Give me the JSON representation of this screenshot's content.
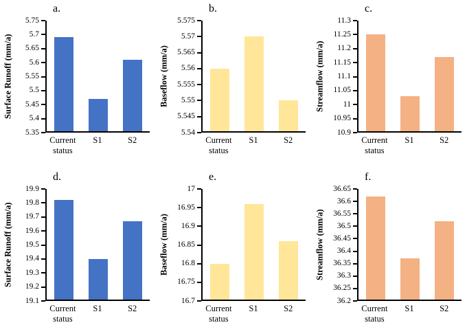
{
  "figure": {
    "background": "#ffffff",
    "axis_color": "#000000",
    "scenario_labels": [
      "Current status",
      "S1",
      "S2"
    ]
  },
  "chart_data": [
    {
      "type": "bar",
      "panel_label": "a.",
      "ylabel": "Surface Runoff (mm/a)",
      "xlabel": "",
      "categories": [
        "Current status",
        "S1",
        "S2"
      ],
      "values": [
        5.69,
        5.47,
        5.61
      ],
      "ylim": [
        5.35,
        5.75
      ],
      "ytick_step": 0.05,
      "bar_color": "#4472C4",
      "grid": false,
      "legend": "none"
    },
    {
      "type": "bar",
      "panel_label": "b.",
      "ylabel": "Baseflow (mm/a)",
      "xlabel": "",
      "categories": [
        "Current status",
        "S1",
        "S2"
      ],
      "values": [
        5.56,
        5.57,
        5.55
      ],
      "ylim": [
        5.54,
        5.575
      ],
      "ytick_step": 0.005,
      "bar_color": "#FFE699",
      "grid": false,
      "legend": "none"
    },
    {
      "type": "bar",
      "panel_label": "c.",
      "ylabel": "Streamflow (mm/a)",
      "xlabel": "",
      "categories": [
        "Current status",
        "S1",
        "S2"
      ],
      "values": [
        11.25,
        11.03,
        11.17
      ],
      "ylim": [
        10.9,
        11.3
      ],
      "ytick_step": 0.05,
      "bar_color": "#F4B183",
      "grid": false,
      "legend": "none"
    },
    {
      "type": "bar",
      "panel_label": "d.",
      "ylabel": "Surface Runoff (mm/a)",
      "xlabel": "",
      "categories": [
        "Current status",
        "S1",
        "S2"
      ],
      "values": [
        19.82,
        19.4,
        19.67
      ],
      "ylim": [
        19.1,
        19.9
      ],
      "ytick_step": 0.1,
      "bar_color": "#4472C4",
      "grid": false,
      "legend": "none"
    },
    {
      "type": "bar",
      "panel_label": "e.",
      "ylabel": "Baseflow (mm/a)",
      "xlabel": "",
      "categories": [
        "Current status",
        "S1",
        "S2"
      ],
      "values": [
        16.8,
        16.96,
        16.86
      ],
      "ylim": [
        16.7,
        17.0
      ],
      "ytick_step": 0.05,
      "bar_color": "#FFE699",
      "grid": false,
      "legend": "none"
    },
    {
      "type": "bar",
      "panel_label": "f.",
      "ylabel": "Streamflow (mm/a)",
      "xlabel": "",
      "categories": [
        "Current status",
        "S1",
        "S2"
      ],
      "values": [
        36.62,
        36.37,
        36.52
      ],
      "ylim": [
        36.2,
        36.65
      ],
      "ytick_step": 0.05,
      "bar_color": "#F4B183",
      "grid": false,
      "legend": "none"
    }
  ]
}
